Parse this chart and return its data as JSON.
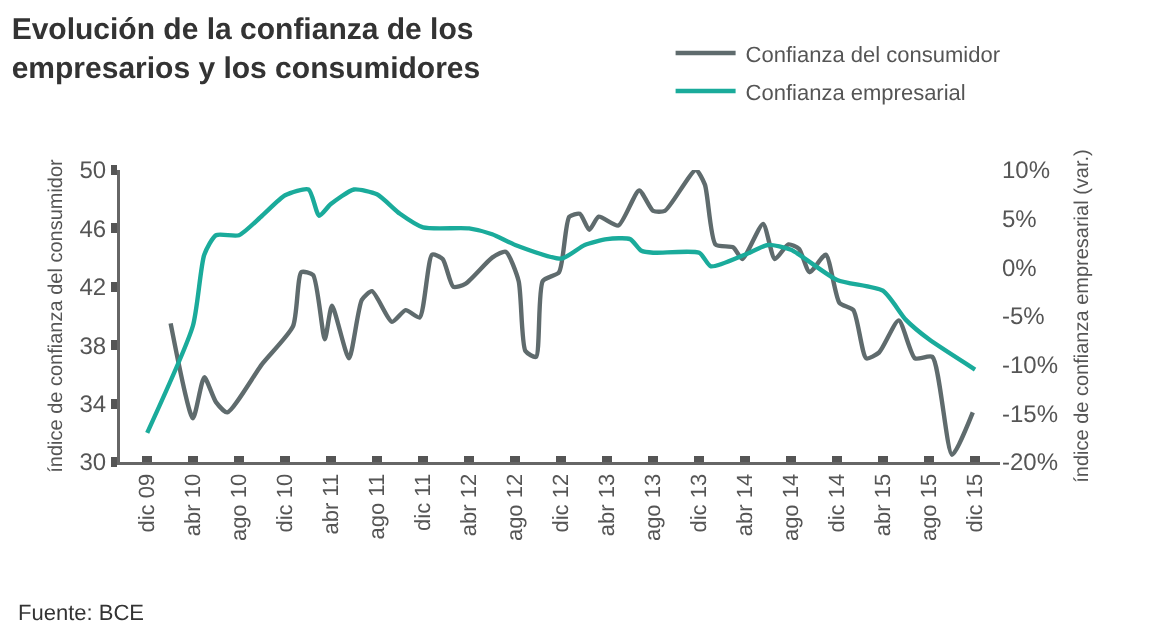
{
  "chart_data": {
    "type": "line",
    "title": "Evolución de la confianza de los\nempresarios y los consumidores",
    "ylabel": "índice de confianza del consumidor",
    "y2label": "índice de confianza empresarial (var.)",
    "annotations": [
      "Fuente: BCE"
    ],
    "legend": "top right",
    "marker": "none",
    "line_style": "solid",
    "xlim": [
      "2009-09-20",
      "2016-02-05"
    ],
    "xticks": [
      {
        "value": "2009-12-01",
        "label": "dic 09"
      },
      {
        "value": "2010-04-01",
        "label": "abr 10"
      },
      {
        "value": "2010-08-01",
        "label": "ago 10"
      },
      {
        "value": "2010-12-01",
        "label": "dic 10"
      },
      {
        "value": "2011-04-01",
        "label": "abr 11"
      },
      {
        "value": "2011-08-01",
        "label": "ago 11"
      },
      {
        "value": "2011-12-01",
        "label": "dic 11"
      },
      {
        "value": "2012-04-01",
        "label": "abr 12"
      },
      {
        "value": "2012-08-01",
        "label": "ago 12"
      },
      {
        "value": "2012-12-01",
        "label": "dic 12"
      },
      {
        "value": "2013-04-01",
        "label": "abr 13"
      },
      {
        "value": "2013-08-01",
        "label": "ago 13"
      },
      {
        "value": "2013-12-01",
        "label": "dic 13"
      },
      {
        "value": "2014-04-01",
        "label": "abr 14"
      },
      {
        "value": "2014-08-01",
        "label": "ago 14"
      },
      {
        "value": "2014-12-01",
        "label": "dic 14"
      },
      {
        "value": "2015-04-01",
        "label": "abr 15"
      },
      {
        "value": "2015-08-01",
        "label": "ago 15"
      },
      {
        "value": "2015-12-01",
        "label": "dic 15"
      }
    ],
    "ylim": [
      30,
      50
    ],
    "yticks": [
      30,
      34,
      38,
      42,
      46,
      50
    ],
    "y2lim": [
      -20,
      10
    ],
    "y2ticks": [
      {
        "value": -20,
        "label": "-20%"
      },
      {
        "value": -15,
        "label": "-15%"
      },
      {
        "value": -10,
        "label": "-10%"
      },
      {
        "value": -5,
        "label": "-5%"
      },
      {
        "value": 0,
        "label": "0%"
      },
      {
        "value": 5,
        "label": "5%"
      },
      {
        "value": 10,
        "label": "10%"
      }
    ],
    "series": [
      {
        "name": "Confianza del consumidor",
        "color": "#5f6b6d",
        "x": [
          "2010-02-01",
          "2010-04-01",
          "2010-05-01",
          "2010-06-01",
          "2010-07-01",
          "2010-10-01",
          "2010-12-22",
          "2011-01-13",
          "2011-02-13",
          "2011-03-16",
          "2011-04-04",
          "2011-05-19",
          "2011-06-22",
          "2011-07-19",
          "2011-09-10",
          "2011-10-16",
          "2011-11-22",
          "2011-12-25",
          "2012-01-22",
          "2012-02-19",
          "2012-03-22",
          "2012-06-01",
          "2012-07-07",
          "2012-08-10",
          "2012-08-28",
          "2012-09-25",
          "2012-10-13",
          "2012-11-25",
          "2012-12-22",
          "2013-01-19",
          "2013-02-13",
          "2013-03-10",
          "2013-05-01",
          "2013-06-25",
          "2013-08-01",
          "2013-09-01",
          "2013-11-22",
          "2013-12-16",
          "2014-01-13",
          "2014-03-01",
          "2014-03-25",
          "2014-05-19",
          "2014-06-19",
          "2014-07-25",
          "2014-08-22",
          "2014-09-19",
          "2014-11-01",
          "2014-12-07",
          "2015-01-13",
          "2015-02-16",
          "2015-03-22",
          "2015-05-13",
          "2015-06-25",
          "2015-08-10",
          "2015-10-01",
          "2015-11-25"
        ],
        "values": [
          39.5,
          33.0,
          35.8,
          34.1,
          33.4,
          36.7,
          39.3,
          43.0,
          42.8,
          38.4,
          40.7,
          37.1,
          41.1,
          41.7,
          39.6,
          40.4,
          39.9,
          44.2,
          43.9,
          42.0,
          42.2,
          44.0,
          44.4,
          42.4,
          37.6,
          37.2,
          42.4,
          43.0,
          46.8,
          47.0,
          45.9,
          46.8,
          46.2,
          48.6,
          47.2,
          47.2,
          50.0,
          49.0,
          44.9,
          44.7,
          43.9,
          46.3,
          43.9,
          44.9,
          44.6,
          43.0,
          44.2,
          40.9,
          40.4,
          37.1,
          37.5,
          39.7,
          37.1,
          37.2,
          30.5,
          33.4
        ]
      },
      {
        "name": "Confianza empresarial",
        "color": "#1aab9b",
        "axis": "y2",
        "x": [
          "2009-12-01",
          "2010-04-01",
          "2010-05-01",
          "2010-06-01",
          "2010-08-01",
          "2010-10-01",
          "2010-12-01",
          "2011-02-01",
          "2011-03-01",
          "2011-04-01",
          "2011-06-01",
          "2011-08-01",
          "2011-10-01",
          "2011-12-01",
          "2012-04-01",
          "2012-06-01",
          "2012-08-01",
          "2012-12-01",
          "2013-02-01",
          "2013-04-01",
          "2013-06-01",
          "2013-07-01",
          "2013-08-01",
          "2013-12-01",
          "2014-01-01",
          "2014-04-01",
          "2014-06-01",
          "2014-08-01",
          "2014-12-01",
          "2015-04-01",
          "2015-06-01",
          "2015-08-01",
          "2015-12-01"
        ],
        "values": [
          -17,
          -6,
          1.3,
          3.3,
          3.3,
          5.3,
          7.4,
          8,
          5.3,
          6.5,
          8,
          7.5,
          5.5,
          4.1,
          4.0,
          3.4,
          2.3,
          0.9,
          2.3,
          2.9,
          2.9,
          1.7,
          1.5,
          1.5,
          0.1,
          1.3,
          2.3,
          1.8,
          -1.3,
          -2.4,
          -5.4,
          -7.4,
          -10.5
        ]
      }
    ]
  }
}
